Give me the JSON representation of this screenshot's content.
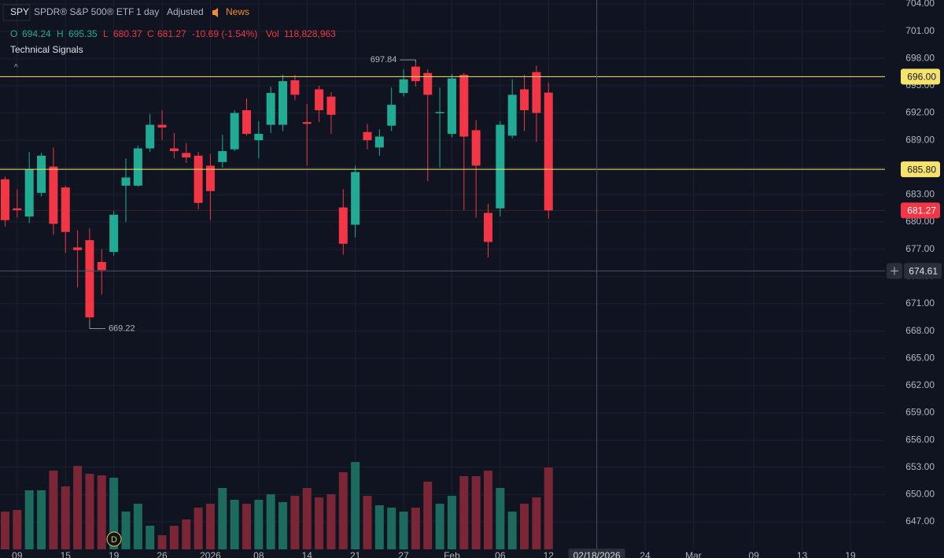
{
  "header": {
    "symbol": "SPY",
    "name": "SPDR® S&P 500® ETF",
    "interval": "1 day",
    "adjustment": "Adjusted",
    "news": "News",
    "open_label": "O",
    "high_label": "H",
    "low_label": "L",
    "close_label": "C",
    "change": "-10.69 (-1.54%)",
    "volume_label": "Vol",
    "volume_text": "118,828,963",
    "signals": "Technical Signals",
    "collapse": "^",
    "marker": "D"
  },
  "chart_data": {
    "type": "candlestick",
    "categories": [
      null,
      "09",
      null,
      null,
      null,
      "15",
      null,
      null,
      null,
      "19",
      null,
      null,
      null,
      "26",
      null,
      null,
      null,
      "2026",
      null,
      null,
      null,
      "08",
      null,
      null,
      null,
      "14",
      null,
      null,
      null,
      "21",
      null,
      null,
      null,
      "27",
      null,
      null,
      null,
      "Feb",
      null,
      null,
      null,
      "06",
      null,
      null,
      null,
      "12",
      null,
      null,
      null,
      "02/18/2026",
      null,
      null,
      null,
      "24",
      null,
      null,
      null,
      "Mar",
      null,
      null,
      null,
      null,
      "09",
      null,
      null,
      null,
      "13",
      null,
      null,
      null,
      "19",
      null,
      null
    ],
    "open": [
      684.7,
      681.5,
      680.6,
      683.2,
      686.1,
      683.8,
      677.2,
      678,
      675.6,
      676.7,
      684,
      684,
      688.1,
      690.7,
      688.1,
      687.6,
      687.3,
      686.2,
      686.6,
      688,
      692.3,
      689,
      690.7,
      690.7,
      695.6,
      691,
      694.6,
      693.8,
      681.6,
      679.7,
      689.9,
      688.2,
      690.6,
      694.2,
      697.1,
      696.4,
      692,
      689.7,
      696.2,
      690.1,
      681,
      681.5,
      689.5,
      694.6,
      696.5,
      694.24,
      null,
      null,
      null,
      null,
      null,
      null,
      null,
      null,
      null,
      null,
      null,
      null,
      null,
      null,
      null,
      null,
      null,
      null,
      null,
      null,
      null,
      null,
      null,
      null,
      null,
      null,
      null
    ],
    "high": [
      685,
      683.6,
      687.7,
      687.6,
      688.2,
      684,
      679.1,
      679.3,
      677,
      681.2,
      687,
      688.4,
      691.9,
      692.3,
      689.8,
      688.7,
      687.7,
      687.5,
      689.6,
      692.3,
      693.6,
      691.1,
      694.9,
      696.2,
      696.2,
      693,
      695,
      694.3,
      683.6,
      686.2,
      690.8,
      690.2,
      694.8,
      696.8,
      697.84,
      696.8,
      694.8,
      696.3,
      696.4,
      691.2,
      682,
      691.1,
      695.7,
      696.2,
      697.2,
      695.35,
      null,
      null,
      null,
      null,
      null,
      null,
      null,
      null,
      null,
      null,
      null,
      null,
      null,
      null,
      null,
      null,
      null,
      null,
      null,
      null,
      null,
      null,
      null,
      null,
      null,
      null,
      null
    ],
    "low": [
      679.5,
      680.5,
      679.9,
      682.8,
      678.6,
      676.6,
      672.8,
      669.22,
      672,
      676.3,
      680,
      683.9,
      687.7,
      689,
      687,
      686.5,
      681.4,
      680.2,
      686,
      687.8,
      689.5,
      687,
      689.8,
      690,
      693.4,
      686.2,
      691,
      689.7,
      676.4,
      678.3,
      688,
      687.3,
      690,
      693.8,
      694.9,
      684.5,
      686,
      689.3,
      681.3,
      680.5,
      676.1,
      680.6,
      689.2,
      690,
      688.8,
      680.37,
      null,
      null,
      null,
      null,
      null,
      null,
      null,
      null,
      null,
      null,
      null,
      null,
      null,
      null,
      null,
      null,
      null,
      null,
      null,
      null,
      null,
      null,
      null,
      null,
      null,
      null,
      null
    ],
    "close": [
      680.2,
      681.3,
      685.8,
      687.3,
      679.8,
      678.9,
      676.9,
      669.5,
      674.7,
      680.8,
      684.9,
      688.1,
      690.7,
      690.4,
      687.8,
      687.1,
      682.1,
      683.4,
      687.8,
      692,
      689.7,
      689.7,
      694.2,
      695.5,
      694,
      690.8,
      692.3,
      691.8,
      677.6,
      685.5,
      689,
      689.4,
      692.9,
      695.7,
      695.5,
      694,
      692.1,
      695.8,
      689.4,
      686.2,
      677.8,
      690.7,
      694,
      692.3,
      692,
      681.27,
      null,
      null,
      null,
      null,
      null,
      null,
      null,
      null,
      null,
      null,
      null,
      null,
      null,
      null,
      null,
      null,
      null,
      null,
      null,
      null,
      null,
      null,
      null,
      null,
      null,
      null,
      null
    ],
    "volume": [
      54800000,
      57100000,
      85700000,
      85700000,
      114300000,
      91400000,
      121100000,
      109700000,
      107400000,
      104000000,
      54800000,
      66300000,
      34300000,
      20600000,
      34300000,
      43400000,
      60600000,
      66300000,
      89100000,
      72000000,
      66300000,
      72000000,
      80000000,
      68600000,
      77700000,
      89100000,
      75400000,
      80000000,
      112000000,
      126800000,
      77700000,
      64000000,
      60600000,
      54800000,
      60600000,
      98300000,
      66300000,
      77700000,
      106300000,
      106300000,
      114300000,
      89100000,
      54800000,
      66300000,
      75400000,
      118828963,
      null,
      null,
      null,
      null,
      null,
      null,
      null,
      null,
      null,
      null,
      null,
      null,
      null,
      null,
      null,
      null,
      null,
      null,
      null,
      null,
      null,
      null,
      null,
      null,
      null,
      null,
      null
    ],
    "up_color": "#22ab94",
    "down_color": "#f23645",
    "up_volume_color": "#1d6b5f",
    "down_volume_color": "#7a2636",
    "ylim": [
      647,
      704
    ],
    "yticks": [
      {
        "value": 704,
        "label": "704.00"
      },
      {
        "value": 701,
        "label": "701.00"
      },
      {
        "value": 698,
        "label": "698.00"
      },
      {
        "value": 695,
        "label": "695.00"
      },
      {
        "value": 692,
        "label": "692.00"
      },
      {
        "value": 689,
        "label": "689.00"
      },
      {
        "value": 686,
        "label": "686.00"
      },
      {
        "value": 683,
        "label": "683.00"
      },
      {
        "value": 680,
        "label": "680.00"
      },
      {
        "value": 677,
        "label": "677.00"
      },
      {
        "value": 674,
        "label": "674.00"
      },
      {
        "value": 671,
        "label": "671.00"
      },
      {
        "value": 668,
        "label": "668.00"
      },
      {
        "value": 665,
        "label": "665.00"
      },
      {
        "value": 662,
        "label": "662.00"
      },
      {
        "value": 659,
        "label": "659.00"
      },
      {
        "value": 656,
        "label": "656.00"
      },
      {
        "value": 653,
        "label": "653.00"
      },
      {
        "value": 650,
        "label": "650.00"
      },
      {
        "value": 647,
        "label": "647.00"
      }
    ],
    "grid": true,
    "price_lines": [
      {
        "value": 696,
        "label": "696.00",
        "color": "#f7e36b"
      },
      {
        "value": 685.8,
        "label": "685.80",
        "color": "#f7e36b"
      }
    ],
    "crosshair": {
      "y": 674.61,
      "x": "02/18/2026"
    },
    "high_mark": 697.84,
    "low_mark": 669.22
  }
}
